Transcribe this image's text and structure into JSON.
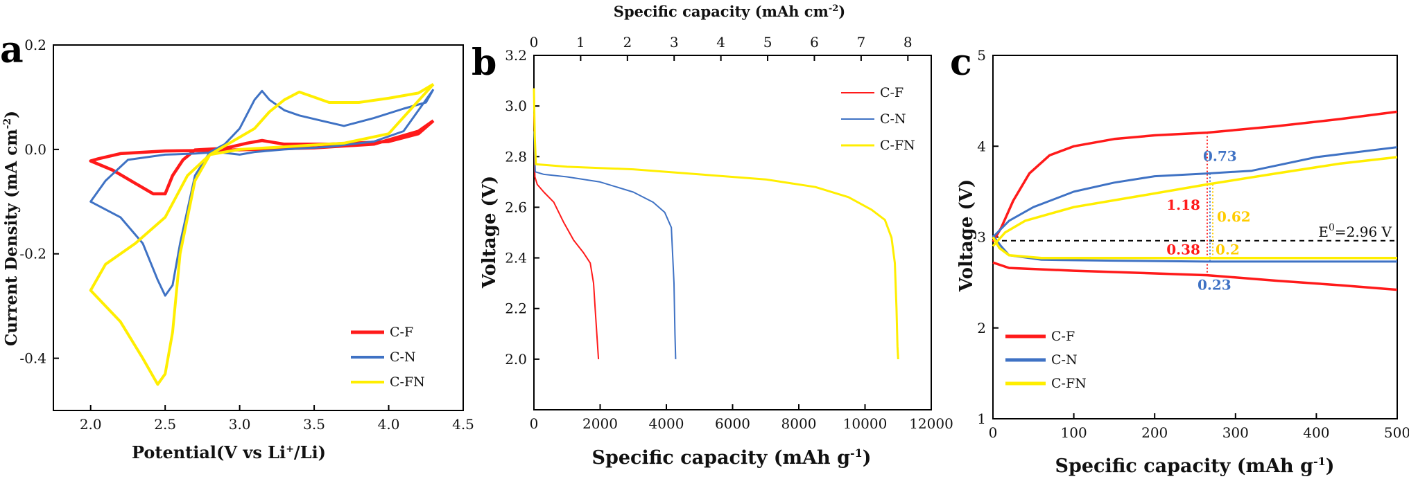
{
  "colors": {
    "c_f": "#ff1a1a",
    "c_n": "#3f72c4",
    "c_fn": "#ffee00",
    "axis": "#000000"
  },
  "chart_data": [
    {
      "panel": "a",
      "type": "line",
      "title": "",
      "xlabel": "Potential(V vs Li+/Li)",
      "ylabel": "Current Density (mA cm-2)",
      "xlim": [
        1.75,
        4.5
      ],
      "ylim": [
        -0.5,
        0.2
      ],
      "xticks": [
        "2.0",
        "2.5",
        "3.0",
        "3.5",
        "4.0",
        "4.5"
      ],
      "yticks": [
        "0.2",
        "0.0",
        "-0.2",
        "-0.4"
      ],
      "legend_position": "bottom-right",
      "series": [
        {
          "name": "C-F",
          "color": "#ff1a1a",
          "width": 4.5,
          "points": [
            [
              4.3,
              0.055
            ],
            [
              4.2,
              0.03
            ],
            [
              4.0,
              0.015
            ],
            [
              3.6,
              0.01
            ],
            [
              3.3,
              0.01
            ],
            [
              3.15,
              0.017
            ],
            [
              3.05,
              0.012
            ],
            [
              2.9,
              0.002
            ],
            [
              2.7,
              -0.001
            ],
            [
              2.62,
              -0.02
            ],
            [
              2.55,
              -0.05
            ],
            [
              2.5,
              -0.085
            ],
            [
              2.42,
              -0.085
            ],
            [
              2.3,
              -0.065
            ],
            [
              2.15,
              -0.04
            ],
            [
              2.0,
              -0.022
            ],
            [
              2.05,
              -0.018
            ],
            [
              2.2,
              -0.008
            ],
            [
              2.5,
              -0.003
            ],
            [
              2.8,
              -0.002
            ],
            [
              3.1,
              0.0
            ],
            [
              3.5,
              0.003
            ],
            [
              3.9,
              0.01
            ],
            [
              4.2,
              0.035
            ],
            [
              4.3,
              0.055
            ]
          ]
        },
        {
          "name": "C-N",
          "color": "#3f72c4",
          "width": 3,
          "points": [
            [
              4.3,
              0.115
            ],
            [
              4.25,
              0.09
            ],
            [
              4.1,
              0.078
            ],
            [
              3.9,
              0.06
            ],
            [
              3.7,
              0.045
            ],
            [
              3.55,
              0.055
            ],
            [
              3.4,
              0.065
            ],
            [
              3.3,
              0.075
            ],
            [
              3.2,
              0.095
            ],
            [
              3.15,
              0.112
            ],
            [
              3.1,
              0.095
            ],
            [
              3.0,
              0.04
            ],
            [
              2.9,
              0.01
            ],
            [
              2.8,
              -0.005
            ],
            [
              2.7,
              -0.05
            ],
            [
              2.6,
              -0.18
            ],
            [
              2.55,
              -0.26
            ],
            [
              2.5,
              -0.28
            ],
            [
              2.45,
              -0.25
            ],
            [
              2.35,
              -0.18
            ],
            [
              2.2,
              -0.13
            ],
            [
              2.0,
              -0.1
            ],
            [
              2.1,
              -0.06
            ],
            [
              2.25,
              -0.02
            ],
            [
              2.5,
              -0.01
            ],
            [
              2.7,
              -0.008
            ],
            [
              2.85,
              -0.005
            ],
            [
              3.0,
              -0.01
            ],
            [
              3.1,
              -0.005
            ],
            [
              3.3,
              0.0
            ],
            [
              3.6,
              0.005
            ],
            [
              3.9,
              0.015
            ],
            [
              4.1,
              0.035
            ],
            [
              4.3,
              0.115
            ]
          ]
        },
        {
          "name": "C-FN",
          "color": "#ffee00",
          "width": 4,
          "points": [
            [
              4.3,
              0.125
            ],
            [
              4.2,
              0.108
            ],
            [
              4.0,
              0.098
            ],
            [
              3.8,
              0.09
            ],
            [
              3.6,
              0.09
            ],
            [
              3.5,
              0.1
            ],
            [
              3.4,
              0.11
            ],
            [
              3.3,
              0.095
            ],
            [
              3.2,
              0.072
            ],
            [
              3.1,
              0.04
            ],
            [
              2.95,
              0.015
            ],
            [
              2.8,
              -0.01
            ],
            [
              2.7,
              -0.06
            ],
            [
              2.6,
              -0.2
            ],
            [
              2.55,
              -0.35
            ],
            [
              2.5,
              -0.43
            ],
            [
              2.45,
              -0.45
            ],
            [
              2.35,
              -0.4
            ],
            [
              2.2,
              -0.33
            ],
            [
              2.0,
              -0.27
            ],
            [
              2.1,
              -0.22
            ],
            [
              2.3,
              -0.18
            ],
            [
              2.5,
              -0.13
            ],
            [
              2.65,
              -0.05
            ],
            [
              2.8,
              -0.01
            ],
            [
              3.0,
              0.0
            ],
            [
              3.3,
              0.005
            ],
            [
              3.7,
              0.012
            ],
            [
              4.0,
              0.03
            ],
            [
              4.3,
              0.125
            ]
          ]
        }
      ],
      "legend": [
        "C-F",
        "C-N",
        "C-FN"
      ]
    },
    {
      "panel": "b",
      "type": "line",
      "xlabel": "Specific capacity (mAh g-1)",
      "x2label": "Specific capacity (mAh cm-2)",
      "ylabel": "Voltage (V)",
      "xlim": [
        0,
        12000
      ],
      "x2lim": [
        0,
        8.5
      ],
      "ylim": [
        1.8,
        3.2
      ],
      "xticks": [
        "0",
        "2000",
        "4000",
        "6000",
        "8000",
        "10000",
        "12000"
      ],
      "x2ticks": [
        "0",
        "1",
        "2",
        "3",
        "4",
        "5",
        "6",
        "7",
        "8"
      ],
      "yticks": [
        "3.2",
        "3.0",
        "2.8",
        "2.6",
        "2.4",
        "2.2",
        "2.0"
      ],
      "legend_position": "top-right",
      "series": [
        {
          "name": "C-F",
          "color": "#ff1a1a",
          "width": 2,
          "points": [
            [
              0,
              2.97
            ],
            [
              30,
              2.72
            ],
            [
              100,
              2.69
            ],
            [
              300,
              2.66
            ],
            [
              600,
              2.62
            ],
            [
              900,
              2.54
            ],
            [
              1200,
              2.47
            ],
            [
              1500,
              2.42
            ],
            [
              1700,
              2.38
            ],
            [
              1800,
              2.3
            ],
            [
              1850,
              2.2
            ],
            [
              1900,
              2.1
            ],
            [
              1950,
              2.0
            ]
          ]
        },
        {
          "name": "C-N",
          "color": "#3f72c4",
          "width": 2,
          "points": [
            [
              0,
              2.9
            ],
            [
              40,
              2.74
            ],
            [
              300,
              2.73
            ],
            [
              1000,
              2.72
            ],
            [
              2000,
              2.7
            ],
            [
              3000,
              2.66
            ],
            [
              3600,
              2.62
            ],
            [
              3950,
              2.58
            ],
            [
              4150,
              2.52
            ],
            [
              4230,
              2.3
            ],
            [
              4260,
              2.1
            ],
            [
              4280,
              2.0
            ]
          ]
        },
        {
          "name": "C-FN",
          "color": "#ffee00",
          "width": 3,
          "points": [
            [
              0,
              3.07
            ],
            [
              25,
              2.88
            ],
            [
              60,
              2.77
            ],
            [
              1000,
              2.76
            ],
            [
              3000,
              2.75
            ],
            [
              5000,
              2.73
            ],
            [
              7000,
              2.71
            ],
            [
              8500,
              2.68
            ],
            [
              9500,
              2.64
            ],
            [
              10200,
              2.59
            ],
            [
              10600,
              2.55
            ],
            [
              10800,
              2.48
            ],
            [
              10900,
              2.38
            ],
            [
              10950,
              2.2
            ],
            [
              10980,
              2.05
            ],
            [
              11000,
              2.0
            ]
          ]
        }
      ],
      "legend": [
        "C-F",
        "C-N",
        "C-FN"
      ]
    },
    {
      "panel": "c",
      "type": "line",
      "xlabel": "Specific capacity (mAh g-1)",
      "ylabel": "Voltage (V)",
      "xlim": [
        0,
        500
      ],
      "ylim": [
        1,
        5
      ],
      "xticks": [
        "0",
        "100",
        "200",
        "300",
        "400",
        "500"
      ],
      "yticks": [
        "5",
        "4",
        "3",
        "2",
        "1"
      ],
      "legend_position": "bottom-left",
      "reference_line": {
        "y": 2.96,
        "label": "E0=2.96 V"
      },
      "annotations": [
        {
          "text": "0.73",
          "color": "#3f72c4"
        },
        {
          "text": "1.18",
          "color": "#ff1a1a"
        },
        {
          "text": "0.62",
          "color": "#ffcc00"
        },
        {
          "text": "0.38",
          "color": "#ff1a1a"
        },
        {
          "text": "0.2",
          "color": "#ffcc00"
        },
        {
          "text": "0.23",
          "color": "#3f72c4"
        }
      ],
      "series": [
        {
          "name": "C-F charge",
          "color": "#ff1a1a",
          "width": 3.5,
          "points": [
            [
              0,
              2.95
            ],
            [
              10,
              3.1
            ],
            [
              25,
              3.4
            ],
            [
              45,
              3.7
            ],
            [
              70,
              3.9
            ],
            [
              100,
              4.0
            ],
            [
              150,
              4.08
            ],
            [
              200,
              4.12
            ],
            [
              265,
              4.15
            ],
            [
              350,
              4.22
            ],
            [
              430,
              4.3
            ],
            [
              500,
              4.38
            ]
          ]
        },
        {
          "name": "C-F discharge",
          "color": "#ff1a1a",
          "width": 3.5,
          "points": [
            [
              0,
              2.72
            ],
            [
              20,
              2.66
            ],
            [
              100,
              2.63
            ],
            [
              200,
              2.6
            ],
            [
              265,
              2.58
            ],
            [
              350,
              2.52
            ],
            [
              430,
              2.47
            ],
            [
              500,
              2.42
            ]
          ]
        },
        {
          "name": "C-N charge",
          "color": "#3f72c4",
          "width": 3,
          "points": [
            [
              0,
              3.0
            ],
            [
              20,
              3.18
            ],
            [
              50,
              3.33
            ],
            [
              100,
              3.5
            ],
            [
              150,
              3.6
            ],
            [
              200,
              3.67
            ],
            [
              265,
              3.7
            ],
            [
              320,
              3.73
            ],
            [
              400,
              3.88
            ],
            [
              500,
              3.99
            ]
          ]
        },
        {
          "name": "C-N discharge",
          "color": "#3f72c4",
          "width": 3,
          "points": [
            [
              0,
              3.02
            ],
            [
              10,
              2.9
            ],
            [
              20,
              2.8
            ],
            [
              60,
              2.75
            ],
            [
              150,
              2.74
            ],
            [
              265,
              2.73
            ],
            [
              400,
              2.73
            ],
            [
              500,
              2.73
            ]
          ]
        },
        {
          "name": "C-FN charge",
          "color": "#ffee00",
          "width": 3.5,
          "points": [
            [
              0,
              2.9
            ],
            [
              15,
              3.05
            ],
            [
              40,
              3.18
            ],
            [
              100,
              3.33
            ],
            [
              180,
              3.45
            ],
            [
              265,
              3.58
            ],
            [
              350,
              3.7
            ],
            [
              430,
              3.81
            ],
            [
              500,
              3.88
            ]
          ]
        },
        {
          "name": "C-FN discharge",
          "color": "#ffee00",
          "width": 3.5,
          "points": [
            [
              0,
              3.0
            ],
            [
              8,
              2.88
            ],
            [
              20,
              2.8
            ],
            [
              60,
              2.77
            ],
            [
              150,
              2.77
            ],
            [
              265,
              2.77
            ],
            [
              400,
              2.77
            ],
            [
              500,
              2.77
            ]
          ]
        }
      ],
      "legend": [
        "C-F",
        "C-N",
        "C-FN"
      ]
    }
  ],
  "figure_text": {
    "panel_a": "a",
    "panel_b": "b",
    "panel_c": "c",
    "a_ylabel_main": "Current Density (mA cm",
    "a_ylabel_sup": "-2",
    "a_ylabel_end": ")",
    "a_xlabel_main": "Potential(V vs Li",
    "a_xlabel_sup": "+",
    "a_xlabel_end": "/Li)",
    "b_xlabel_main": "Specific capacity (mAh g",
    "b_xlabel_sup": "-1",
    "b_xlabel_end": ")",
    "b_x2label_main": "Specific capacity (mAh cm",
    "b_x2label_sup": "-2",
    "b_x2label_end": ")",
    "b_ylabel": "Voltage (V)",
    "c_xlabel_main": "Specific capacity (mAh g",
    "c_xlabel_sup": "-1",
    "c_xlabel_end": ")",
    "c_ylabel": "Voltage (V)",
    "c_ref_main": "E",
    "c_ref_sup": "0",
    "c_ref_end": "=2.96 V"
  }
}
